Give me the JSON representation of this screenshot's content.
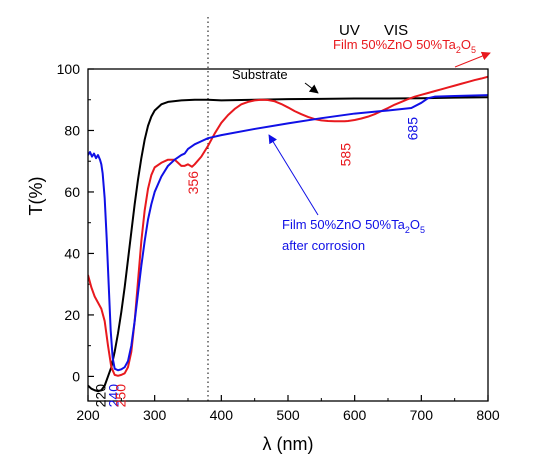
{
  "chart_data": {
    "type": "line",
    "xlabel": "λ (nm)",
    "ylabel": "T(%)",
    "xlim": [
      200,
      800
    ],
    "ylim": [
      -8,
      100
    ],
    "xticks": [
      "200",
      "300",
      "400",
      "500",
      "600",
      "700",
      "800"
    ],
    "yticks": [
      "0",
      "20",
      "40",
      "60",
      "80",
      "100"
    ],
    "region_divider_x": 380,
    "region_labels": {
      "left": "UV",
      "right": "VIS"
    },
    "series": [
      {
        "name": "Substrate",
        "color": "#000000",
        "points": [
          [
            200,
            -3
          ],
          [
            205,
            -4
          ],
          [
            210,
            -4.5
          ],
          [
            215,
            -4.8
          ],
          [
            220,
            -4.5
          ],
          [
            225,
            -3
          ],
          [
            230,
            0
          ],
          [
            235,
            3
          ],
          [
            240,
            8
          ],
          [
            245,
            14
          ],
          [
            250,
            21
          ],
          [
            255,
            29
          ],
          [
            260,
            38
          ],
          [
            265,
            47
          ],
          [
            270,
            56
          ],
          [
            275,
            64
          ],
          [
            280,
            71
          ],
          [
            285,
            77
          ],
          [
            290,
            81.5
          ],
          [
            295,
            84.5
          ],
          [
            300,
            86.5
          ],
          [
            310,
            88.5
          ],
          [
            320,
            89.3
          ],
          [
            340,
            89.8
          ],
          [
            360,
            90
          ],
          [
            380,
            90
          ],
          [
            400,
            89.8
          ],
          [
            450,
            90
          ],
          [
            500,
            90.2
          ],
          [
            550,
            90.3
          ],
          [
            600,
            90.4
          ],
          [
            650,
            90.4
          ],
          [
            700,
            90.5
          ],
          [
            750,
            90.7
          ],
          [
            800,
            90.8
          ]
        ]
      },
      {
        "name": "Film 50%ZnO 50%Ta2O5",
        "label_main": "Film 50%ZnO 50%Ta",
        "sub1": "2",
        "mid": "O",
        "sub2": "5",
        "color": "#e8191e",
        "points": [
          [
            200,
            33
          ],
          [
            205,
            29
          ],
          [
            210,
            26
          ],
          [
            215,
            24
          ],
          [
            220,
            22
          ],
          [
            225,
            18
          ],
          [
            230,
            10
          ],
          [
            235,
            3
          ],
          [
            240,
            0.5
          ],
          [
            245,
            0.2
          ],
          [
            250,
            0.5
          ],
          [
            255,
            1
          ],
          [
            260,
            3
          ],
          [
            265,
            8
          ],
          [
            270,
            18
          ],
          [
            275,
            31
          ],
          [
            280,
            44
          ],
          [
            285,
            54
          ],
          [
            290,
            61
          ],
          [
            295,
            65.5
          ],
          [
            300,
            68
          ],
          [
            310,
            69.5
          ],
          [
            320,
            70.5
          ],
          [
            330,
            70.5
          ],
          [
            335,
            69.5
          ],
          [
            340,
            68.5
          ],
          [
            345,
            68.5
          ],
          [
            350,
            69
          ],
          [
            356,
            68.2
          ],
          [
            360,
            69
          ],
          [
            370,
            71.5
          ],
          [
            380,
            75
          ],
          [
            390,
            79
          ],
          [
            400,
            82.5
          ],
          [
            410,
            85
          ],
          [
            420,
            87
          ],
          [
            430,
            88.5
          ],
          [
            440,
            89.3
          ],
          [
            450,
            89.8
          ],
          [
            460,
            90
          ],
          [
            470,
            89.9
          ],
          [
            480,
            89.5
          ],
          [
            490,
            88.6
          ],
          [
            500,
            87.5
          ],
          [
            510,
            86.3
          ],
          [
            520,
            85.3
          ],
          [
            530,
            84.4
          ],
          [
            540,
            83.7
          ],
          [
            550,
            83.3
          ],
          [
            560,
            83.1
          ],
          [
            570,
            83
          ],
          [
            580,
            83
          ],
          [
            585,
            83
          ],
          [
            590,
            83.1
          ],
          [
            600,
            83.4
          ],
          [
            610,
            83.9
          ],
          [
            620,
            84.5
          ],
          [
            630,
            85.3
          ],
          [
            640,
            86.3
          ],
          [
            650,
            87.3
          ],
          [
            660,
            88.4
          ],
          [
            670,
            89.3
          ],
          [
            680,
            90.2
          ],
          [
            690,
            91
          ],
          [
            700,
            91.6
          ],
          [
            710,
            92.2
          ],
          [
            720,
            92.8
          ],
          [
            730,
            93.4
          ],
          [
            740,
            94
          ],
          [
            750,
            94.6
          ],
          [
            760,
            95.2
          ],
          [
            770,
            95.8
          ],
          [
            780,
            96.4
          ],
          [
            790,
            96.9
          ],
          [
            800,
            97.5
          ]
        ]
      },
      {
        "name": "Film 50%ZnO 50%Ta2O5 after corrosion",
        "label_main": "Film 50%ZnO 50%Ta",
        "sub1": "2",
        "mid": "O",
        "sub2": "5",
        "label_line2": "after corrosion",
        "color": "#1010e6",
        "points": [
          [
            200,
            72
          ],
          [
            203,
            73
          ],
          [
            206,
            71.5
          ],
          [
            209,
            72.5
          ],
          [
            212,
            71
          ],
          [
            215,
            72
          ],
          [
            218,
            70.5
          ],
          [
            220,
            69
          ],
          [
            222,
            66
          ],
          [
            225,
            58
          ],
          [
            228,
            45
          ],
          [
            231,
            30
          ],
          [
            234,
            15
          ],
          [
            237,
            6
          ],
          [
            240,
            2.5
          ],
          [
            245,
            2
          ],
          [
            250,
            2.3
          ],
          [
            255,
            3
          ],
          [
            260,
            5
          ],
          [
            265,
            10
          ],
          [
            270,
            18
          ],
          [
            275,
            27
          ],
          [
            280,
            36
          ],
          [
            285,
            44
          ],
          [
            290,
            51
          ],
          [
            295,
            56
          ],
          [
            300,
            60
          ],
          [
            310,
            65
          ],
          [
            320,
            68.5
          ],
          [
            330,
            70.5
          ],
          [
            340,
            72
          ],
          [
            345,
            72.5
          ],
          [
            350,
            74
          ],
          [
            360,
            75.5
          ],
          [
            370,
            76.5
          ],
          [
            380,
            77.5
          ],
          [
            400,
            78.5
          ],
          [
            450,
            80.5
          ],
          [
            500,
            82.3
          ],
          [
            550,
            84
          ],
          [
            600,
            85.5
          ],
          [
            650,
            86.5
          ],
          [
            685,
            87.3
          ],
          [
            700,
            89
          ],
          [
            710,
            90.5
          ],
          [
            720,
            91
          ],
          [
            750,
            91.2
          ],
          [
            800,
            91.5
          ]
        ]
      }
    ],
    "annotations": [
      {
        "text": "220",
        "x": 220,
        "color": "#000000"
      },
      {
        "text": "240",
        "x": 240,
        "color": "#1010e6"
      },
      {
        "text": "250",
        "x": 250,
        "color": "#e8191e"
      },
      {
        "text": "356",
        "x": 356,
        "color": "#e8191e"
      },
      {
        "text": "585",
        "x": 585,
        "color": "#e8191e"
      },
      {
        "text": "685",
        "x": 685,
        "color": "#1010e6"
      }
    ]
  }
}
